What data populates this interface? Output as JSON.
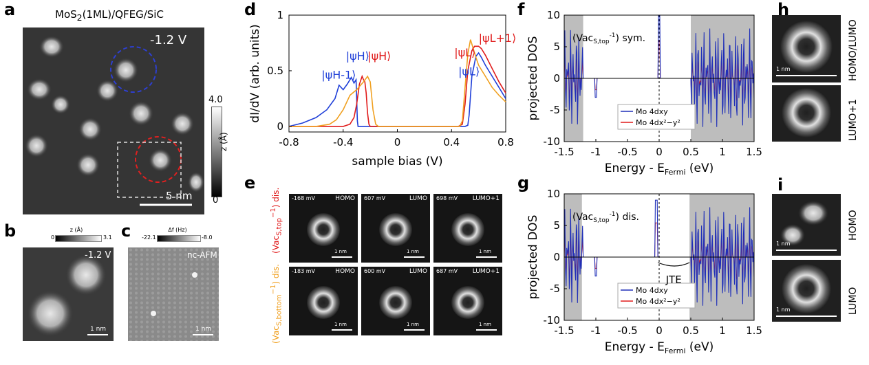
{
  "panels": {
    "a": {
      "letter": "a",
      "title_html": "MoS<sub>2</sub>(1ML)/QFEG/SiC",
      "bias": "-1.2 V",
      "scalebar": "5 nm",
      "colorbar": {
        "max": "4.0",
        "min": "0",
        "label": "z (Å)"
      }
    },
    "b": {
      "letter": "b",
      "colorbar": {
        "min": "0",
        "max": "3.1",
        "label": "z (Å)"
      },
      "bias": "-1.2 V",
      "scalebar": "1 nm"
    },
    "c": {
      "letter": "c",
      "colorbar": {
        "min": "-22.1",
        "max": "-8.0",
        "label": "Δf (Hz)"
      },
      "mode": "nc-AFM",
      "scalebar": "1 nm"
    },
    "d": {
      "letter": "d"
    },
    "e": {
      "letter": "e",
      "side_red": "(Vac",
      "row_top": [
        {
          "mv": "-168 mV",
          "name": "HOMO"
        },
        {
          "mv": "607 mV",
          "name": "LUMO"
        },
        {
          "mv": "698 mV",
          "name": "LUMO+1"
        }
      ],
      "row_bottom": [
        {
          "mv": "-183 mV",
          "name": "HOMO"
        },
        {
          "mv": "600 mV",
          "name": "LUMO"
        },
        {
          "mv": "687 mV",
          "name": "LUMO+1"
        }
      ],
      "scalebar": "1 nm"
    },
    "f": {
      "letter": "f"
    },
    "g": {
      "letter": "g",
      "jte": "JTE"
    },
    "h": {
      "letter": "h",
      "labels": [
        "HOMO/LUMO",
        "LUMO+1"
      ],
      "scalebar": "1 nm"
    },
    "i": {
      "letter": "i",
      "labels": [
        "HOMO",
        "LUMO"
      ],
      "scalebar": "1 nm"
    }
  },
  "chart_data": [
    {
      "type": "line",
      "panel": "d",
      "xlabel": "sample bias (V)",
      "ylabel": "dI/dV (arb. units)",
      "xlim": [
        -0.8,
        0.8
      ],
      "ylim": [
        -0.05,
        1.0
      ],
      "xticks": [
        "-0.8",
        "-0.4",
        "0",
        "0.4",
        "0.8"
      ],
      "yticks": [
        "0",
        "0.5",
        "1"
      ],
      "annotations": [
        "|ψH-1⟩",
        "|ψH⟩",
        "|ψH⟩",
        "|ψL⟩",
        "|ψL+1⟩",
        "|ψL⟩"
      ],
      "series": [
        {
          "color": "#1f3fd8",
          "x": [
            -0.8,
            -0.7,
            -0.6,
            -0.52,
            -0.46,
            -0.43,
            -0.4,
            -0.37,
            -0.34,
            -0.32,
            -0.305,
            -0.3,
            -0.295,
            -0.29,
            -0.2,
            0,
            0.4,
            0.5,
            0.52,
            0.53,
            0.55,
            0.58,
            0.6,
            0.62,
            0.65,
            0.7,
            0.75,
            0.8
          ],
          "y": [
            0.0,
            0.03,
            0.08,
            0.15,
            0.25,
            0.37,
            0.33,
            0.38,
            0.44,
            0.39,
            0.42,
            0.25,
            0.05,
            0.0,
            0.0,
            0.0,
            0.0,
            0.0,
            0.01,
            0.1,
            0.45,
            0.63,
            0.66,
            0.62,
            0.55,
            0.45,
            0.35,
            0.25
          ]
        },
        {
          "color": "#e01a1a",
          "x": [
            -0.8,
            -0.5,
            -0.4,
            -0.35,
            -0.32,
            -0.3,
            -0.28,
            -0.26,
            -0.25,
            -0.24,
            -0.23,
            -0.22,
            -0.21,
            -0.2,
            0,
            0.4,
            0.45,
            0.48,
            0.5,
            0.52,
            0.55,
            0.57,
            0.6,
            0.62,
            0.65,
            0.7,
            0.75,
            0.8
          ],
          "y": [
            0.0,
            0.0,
            0.0,
            0.02,
            0.08,
            0.2,
            0.38,
            0.45,
            0.42,
            0.4,
            0.3,
            0.12,
            0.02,
            0.0,
            0.0,
            0.0,
            0.0,
            0.02,
            0.2,
            0.5,
            0.68,
            0.72,
            0.72,
            0.7,
            0.64,
            0.52,
            0.4,
            0.3
          ]
        },
        {
          "color": "#f0a020",
          "x": [
            -0.8,
            -0.7,
            -0.6,
            -0.5,
            -0.45,
            -0.4,
            -0.35,
            -0.3,
            -0.25,
            -0.22,
            -0.2,
            -0.18,
            -0.16,
            -0.14,
            0,
            0.4,
            0.46,
            0.48,
            0.5,
            0.52,
            0.54,
            0.56,
            0.58,
            0.6,
            0.65,
            0.7,
            0.75,
            0.8
          ],
          "y": [
            0.0,
            0.0,
            0.0,
            0.02,
            0.06,
            0.15,
            0.28,
            0.33,
            0.4,
            0.45,
            0.4,
            0.15,
            0.02,
            0.0,
            0.0,
            0.0,
            0.0,
            0.05,
            0.35,
            0.65,
            0.78,
            0.7,
            0.62,
            0.55,
            0.45,
            0.35,
            0.28,
            0.22
          ]
        }
      ]
    },
    {
      "type": "line",
      "panel": "f",
      "xlabel": "Energy - E",
      "ylabel": "projected DOS",
      "xlim": [
        -1.5,
        1.5
      ],
      "ylim": [
        -10,
        10
      ],
      "xticks": [
        "-1.5",
        "-1",
        "-0.5",
        "0",
        "0.5",
        "1",
        "1.5"
      ],
      "yticks": [
        "10",
        "5",
        "0",
        "-5",
        "-10"
      ],
      "annotation": "(Vac",
      "legend": [
        "Mo 4d",
        "Mo 4d"
      ]
    },
    {
      "type": "line",
      "panel": "g",
      "xlabel": "Energy - E",
      "ylabel": "projected DOS",
      "xlim": [
        -1.5,
        1.5
      ],
      "ylim": [
        -10,
        10
      ],
      "xticks": [
        "-1.5",
        "-1",
        "-0.5",
        "0",
        "0.5",
        "1",
        "1.5"
      ],
      "yticks": [
        "10",
        "5",
        "0",
        "-5",
        "-10"
      ],
      "annotation": "(Vac",
      "legend": [
        "Mo 4d",
        "Mo 4d"
      ]
    }
  ]
}
